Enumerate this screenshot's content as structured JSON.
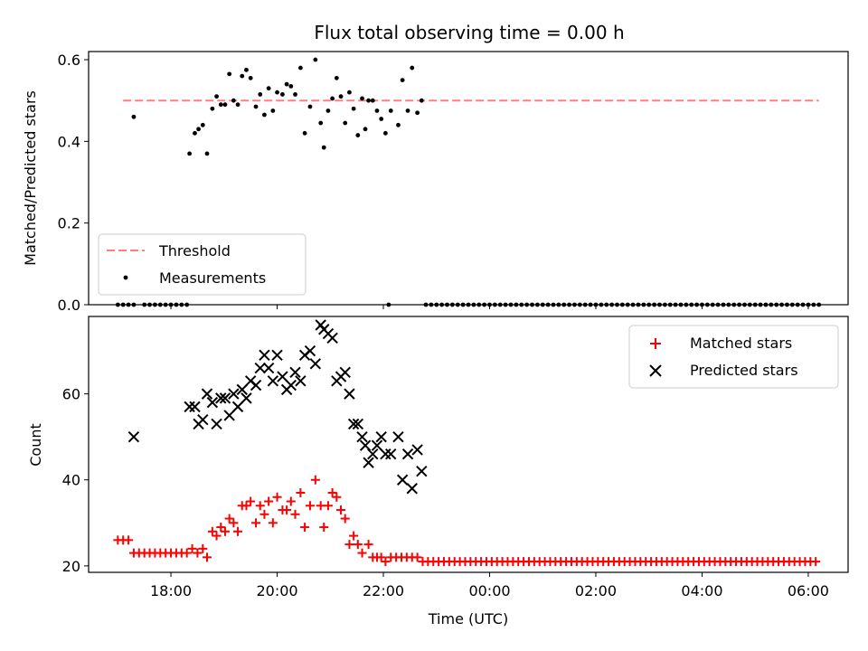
{
  "chart_data": [
    {
      "type": "scatter",
      "title": "Flux total observing time = 0.00 h",
      "xlabel": "",
      "ylabel": "Matched/Predicted stars",
      "x_unit": "hours since 00:00 UTC of first night day (17:05 = 17.08)",
      "xlim": [
        16.45,
        30.75
      ],
      "ylim": [
        0,
        0.62
      ],
      "y_ticks": [
        0.0,
        0.2,
        0.4,
        0.6
      ],
      "y_tick_labels": [
        "0.0",
        "0.2",
        "0.4",
        "0.6"
      ],
      "grid": false,
      "legend_position": "lower-left",
      "threshold": {
        "name": "Threshold",
        "value": 0.5,
        "x_range": [
          17.1,
          30.2
        ],
        "color": "#ff7f7f"
      },
      "series": [
        {
          "name": "Measurements",
          "color": "#000000",
          "points": [
            [
              17.3,
              0.46
            ],
            [
              18.35,
              0.37
            ],
            [
              18.45,
              0.42
            ],
            [
              18.52,
              0.43
            ],
            [
              18.6,
              0.44
            ],
            [
              18.68,
              0.37
            ],
            [
              18.78,
              0.48
            ],
            [
              18.86,
              0.51
            ],
            [
              18.94,
              0.49
            ],
            [
              19.02,
              0.49
            ],
            [
              19.1,
              0.565
            ],
            [
              19.18,
              0.5
            ],
            [
              19.26,
              0.49
            ],
            [
              19.34,
              0.56
            ],
            [
              19.42,
              0.575
            ],
            [
              19.5,
              0.555
            ],
            [
              19.6,
              0.485
            ],
            [
              19.68,
              0.515
            ],
            [
              19.76,
              0.465
            ],
            [
              19.84,
              0.53
            ],
            [
              19.92,
              0.475
            ],
            [
              20.0,
              0.52
            ],
            [
              20.1,
              0.515
            ],
            [
              20.18,
              0.54
            ],
            [
              20.26,
              0.535
            ],
            [
              20.34,
              0.515
            ],
            [
              20.44,
              0.58
            ],
            [
              20.52,
              0.42
            ],
            [
              20.62,
              0.485
            ],
            [
              20.72,
              0.6
            ],
            [
              20.82,
              0.445
            ],
            [
              20.88,
              0.385
            ],
            [
              20.96,
              0.475
            ],
            [
              21.04,
              0.505
            ],
            [
              21.12,
              0.555
            ],
            [
              21.2,
              0.51
            ],
            [
              21.28,
              0.445
            ],
            [
              21.36,
              0.52
            ],
            [
              21.44,
              0.48
            ],
            [
              21.52,
              0.415
            ],
            [
              21.6,
              0.505
            ],
            [
              21.66,
              0.43
            ],
            [
              21.72,
              0.5
            ],
            [
              21.8,
              0.5
            ],
            [
              21.88,
              0.475
            ],
            [
              21.96,
              0.455
            ],
            [
              22.04,
              0.42
            ],
            [
              22.14,
              0.475
            ],
            [
              22.28,
              0.44
            ],
            [
              22.36,
              0.55
            ],
            [
              22.46,
              0.475
            ],
            [
              22.54,
              0.58
            ],
            [
              22.64,
              0.47
            ],
            [
              22.72,
              0.5
            ]
          ],
          "zero_x_ranges": [
            [
              17.0,
              17.3
            ],
            [
              17.5,
              18.3
            ],
            [
              22.8,
              30.2
            ]
          ],
          "zero_x_single": [
            22.1
          ]
        }
      ]
    },
    {
      "type": "scatter",
      "title": "",
      "xlabel": "Time (UTC)",
      "ylabel": "Count",
      "x_unit": "hours since 00:00 UTC of first night day",
      "xlim": [
        16.45,
        30.75
      ],
      "ylim": [
        18.5,
        78
      ],
      "x_ticks": [
        18,
        20,
        22,
        24,
        26,
        28,
        30
      ],
      "x_tick_labels": [
        "18:00",
        "20:00",
        "22:00",
        "00:00",
        "02:00",
        "04:00",
        "06:00"
      ],
      "y_ticks": [
        20,
        40,
        60
      ],
      "y_tick_labels": [
        "20",
        "40",
        "60"
      ],
      "grid": false,
      "legend_position": "upper-right",
      "series": [
        {
          "name": "Matched stars",
          "marker": "plus",
          "color": "#ff0000",
          "points": [
            [
              17.0,
              26
            ],
            [
              17.1,
              26
            ],
            [
              17.2,
              26
            ],
            [
              17.3,
              23
            ],
            [
              17.4,
              23
            ],
            [
              17.5,
              23
            ],
            [
              17.6,
              23
            ],
            [
              17.7,
              23
            ],
            [
              17.8,
              23
            ],
            [
              17.9,
              23
            ],
            [
              18.0,
              23
            ],
            [
              18.1,
              23
            ],
            [
              18.2,
              23
            ],
            [
              18.3,
              23
            ],
            [
              18.4,
              24
            ],
            [
              18.5,
              23
            ],
            [
              18.6,
              24
            ],
            [
              18.68,
              22
            ],
            [
              18.78,
              28
            ],
            [
              18.86,
              27
            ],
            [
              18.94,
              29
            ],
            [
              19.02,
              28
            ],
            [
              19.1,
              31
            ],
            [
              19.18,
              30
            ],
            [
              19.26,
              28
            ],
            [
              19.34,
              34
            ],
            [
              19.42,
              34
            ],
            [
              19.5,
              35
            ],
            [
              19.6,
              30
            ],
            [
              19.68,
              34
            ],
            [
              19.76,
              32
            ],
            [
              19.84,
              35
            ],
            [
              19.92,
              30
            ],
            [
              20.0,
              36
            ],
            [
              20.1,
              33
            ],
            [
              20.18,
              33
            ],
            [
              20.26,
              35
            ],
            [
              20.34,
              32
            ],
            [
              20.44,
              37
            ],
            [
              20.52,
              29
            ],
            [
              20.62,
              34
            ],
            [
              20.72,
              40
            ],
            [
              20.82,
              34
            ],
            [
              20.88,
              29
            ],
            [
              20.96,
              34
            ],
            [
              21.04,
              37
            ],
            [
              21.12,
              36
            ],
            [
              21.2,
              33
            ],
            [
              21.28,
              31
            ],
            [
              21.36,
              25
            ],
            [
              21.44,
              27
            ],
            [
              21.52,
              25
            ],
            [
              21.6,
              23
            ],
            [
              21.72,
              25
            ],
            [
              21.8,
              22
            ],
            [
              21.88,
              22
            ],
            [
              21.96,
              22
            ],
            [
              22.04,
              21
            ],
            [
              22.14,
              22
            ],
            [
              22.24,
              22
            ],
            [
              22.34,
              22
            ],
            [
              22.44,
              22
            ],
            [
              22.54,
              22
            ],
            [
              22.64,
              22
            ]
          ],
          "flat_value": 21,
          "flat_x_range": [
            22.74,
            30.2
          ]
        },
        {
          "name": "Predicted stars",
          "marker": "x",
          "color": "#000000",
          "points": [
            [
              17.3,
              50
            ],
            [
              18.35,
              57
            ],
            [
              18.45,
              57
            ],
            [
              18.52,
              53
            ],
            [
              18.6,
              54
            ],
            [
              18.68,
              60
            ],
            [
              18.78,
              58
            ],
            [
              18.86,
              53
            ],
            [
              18.94,
              59
            ],
            [
              19.02,
              59
            ],
            [
              19.1,
              55
            ],
            [
              19.18,
              60
            ],
            [
              19.26,
              57
            ],
            [
              19.34,
              61
            ],
            [
              19.42,
              59
            ],
            [
              19.5,
              63
            ],
            [
              19.6,
              62
            ],
            [
              19.68,
              66
            ],
            [
              19.76,
              69
            ],
            [
              19.84,
              66
            ],
            [
              19.92,
              63
            ],
            [
              20.0,
              69
            ],
            [
              20.1,
              64
            ],
            [
              20.18,
              61
            ],
            [
              20.26,
              62
            ],
            [
              20.34,
              65
            ],
            [
              20.44,
              63
            ],
            [
              20.52,
              69
            ],
            [
              20.62,
              70
            ],
            [
              20.72,
              67
            ],
            [
              20.82,
              76
            ],
            [
              20.88,
              75
            ],
            [
              20.96,
              74
            ],
            [
              21.04,
              73
            ],
            [
              21.12,
              63
            ],
            [
              21.2,
              64
            ],
            [
              21.28,
              65
            ],
            [
              21.36,
              60
            ],
            [
              21.44,
              53
            ],
            [
              21.52,
              53
            ],
            [
              21.6,
              50
            ],
            [
              21.66,
              48
            ],
            [
              21.72,
              44
            ],
            [
              21.8,
              46
            ],
            [
              21.88,
              48
            ],
            [
              21.96,
              50
            ],
            [
              22.04,
              46
            ],
            [
              22.14,
              46
            ],
            [
              22.28,
              50
            ],
            [
              22.36,
              40
            ],
            [
              22.46,
              46
            ],
            [
              22.54,
              38
            ],
            [
              22.64,
              47
            ],
            [
              22.72,
              42
            ]
          ]
        }
      ]
    }
  ]
}
